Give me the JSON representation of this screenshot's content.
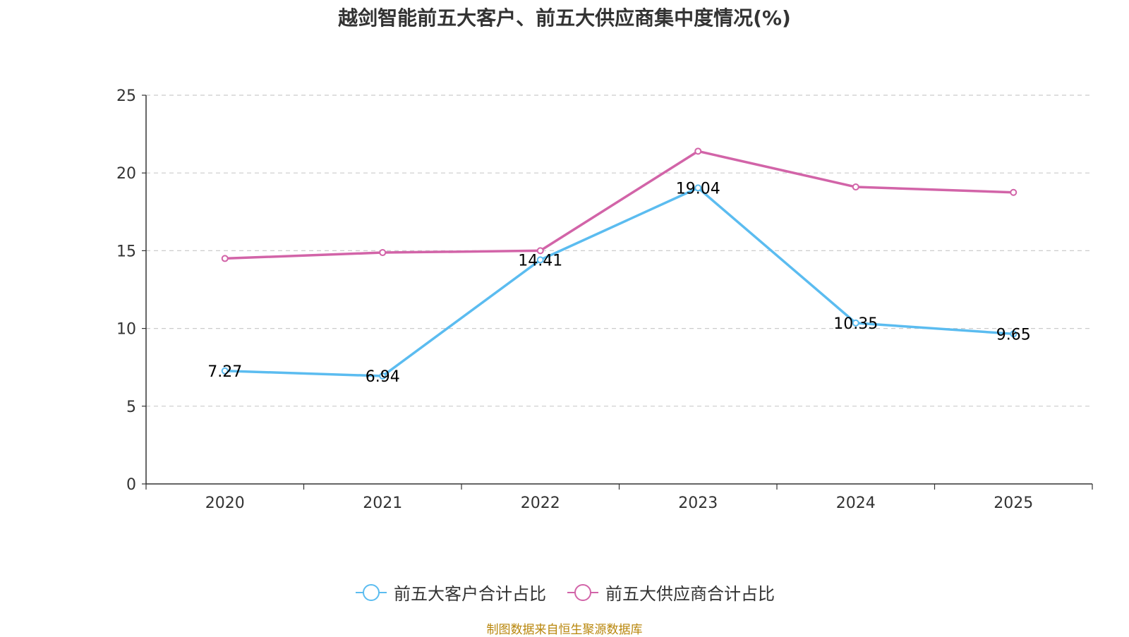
{
  "chart_data": {
    "type": "line",
    "title": "越剑智能前五大客户、前五大供应商集中度情况(%)",
    "categories": [
      "2020",
      "2021",
      "2022",
      "2023",
      "2024",
      "2025"
    ],
    "ylim": [
      0,
      25
    ],
    "yticks": [
      0,
      5,
      10,
      15,
      20,
      25
    ],
    "grid": true,
    "legend_position": "bottom-center",
    "series": [
      {
        "name": "前五大客户合计占比",
        "color": "#5bbcf0",
        "values": [
          7.27,
          6.94,
          14.41,
          19.04,
          10.35,
          9.65
        ],
        "labels": [
          "7.27",
          "6.94",
          "14.41",
          "19.04",
          "10.35",
          "9.65"
        ],
        "show_labels": true
      },
      {
        "name": "前五大供应商合计占比",
        "color": "#d264a8",
        "values": [
          14.5,
          14.88,
          15.0,
          21.4,
          19.1,
          18.75
        ],
        "show_labels": false
      }
    ]
  },
  "source_text": "制图数据来自恒生聚源数据库"
}
